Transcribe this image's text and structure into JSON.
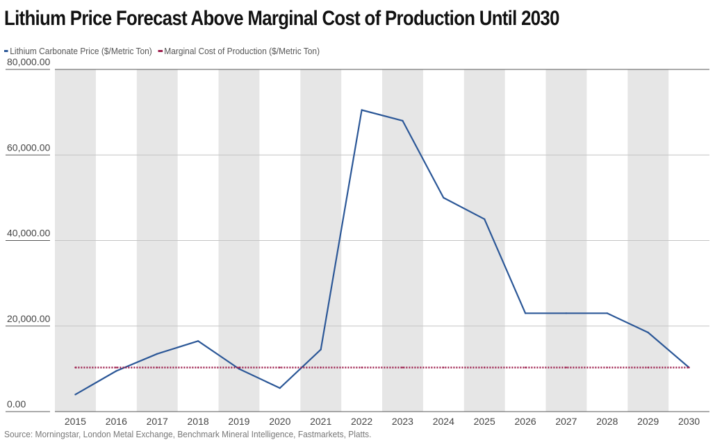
{
  "chart_data": {
    "type": "line",
    "title": "Lithium Price Forecast Above Marginal Cost of Production Until 2030",
    "xlabel": "",
    "ylabel": "",
    "categories": [
      "2015",
      "2016",
      "2017",
      "2018",
      "2019",
      "2020",
      "2021",
      "2022",
      "2023",
      "2024",
      "2025",
      "2026",
      "2027",
      "2028",
      "2029",
      "2030"
    ],
    "y_ticks": [
      "0.00",
      "20,000.00",
      "40,000.00",
      "60,000.00",
      "80,000.00"
    ],
    "y_tick_values": [
      0,
      20000,
      40000,
      60000,
      80000
    ],
    "ylim": [
      0,
      80000
    ],
    "grid": "horizontal",
    "alternating_bands": true,
    "legend_position": "top-left",
    "series": [
      {
        "name": "Lithium Carbonate Price ($/Metric Ton)",
        "style": "solid",
        "color": "#2b5797",
        "values": [
          4000,
          9500,
          13500,
          16500,
          10000,
          5500,
          14500,
          70500,
          68000,
          50000,
          45000,
          23000,
          23000,
          23000,
          18500,
          10300
        ]
      },
      {
        "name": "Marginal Cost of Production ($/Metric Ton)",
        "style": "dotted",
        "color": "#9b1b4a",
        "values": [
          10300,
          10300,
          10300,
          10300,
          10300,
          10300,
          10300,
          10300,
          10300,
          10300,
          10300,
          10300,
          10300,
          10300,
          10300,
          10300
        ]
      }
    ],
    "source": "Source: Morningstar, London Metal Exchange, Benchmark Mineral Intelligence, Fastmarkets, Platts."
  }
}
